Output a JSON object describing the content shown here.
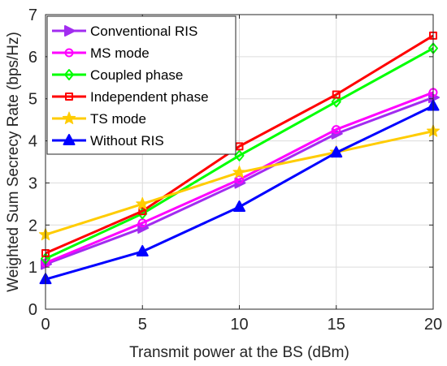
{
  "chart_data": {
    "type": "line",
    "xlabel": "Transmit power at the BS (dBm)",
    "ylabel": "Weighted Sum Secrecy Rate (bps/Hz)",
    "xlim": [
      0,
      20
    ],
    "ylim": [
      0,
      7
    ],
    "x": [
      0,
      5,
      10,
      15,
      20
    ],
    "xticks": [
      "0",
      "5",
      "10",
      "15",
      "20"
    ],
    "yticks": [
      "0",
      "1",
      "2",
      "3",
      "4",
      "5",
      "6",
      "7"
    ],
    "grid": true,
    "legend_position": "top-left",
    "series": [
      {
        "name": "Conventional RIS",
        "color": "#a22cf0",
        "marker": "triangle-right",
        "values": [
          1.07,
          1.93,
          3.0,
          4.17,
          5.03
        ]
      },
      {
        "name": "MS mode",
        "color": "#ff00ff",
        "marker": "circle",
        "values": [
          1.1,
          2.05,
          3.08,
          4.27,
          5.15
        ]
      },
      {
        "name": "Coupled phase",
        "color": "#00ff00",
        "marker": "diamond",
        "values": [
          1.2,
          2.27,
          3.65,
          4.93,
          6.2
        ]
      },
      {
        "name": "Independent phase",
        "color": "#ff0000",
        "marker": "square",
        "values": [
          1.33,
          2.33,
          3.87,
          5.1,
          6.5
        ]
      },
      {
        "name": "TS mode",
        "color": "#ffcc00",
        "marker": "star",
        "values": [
          1.77,
          2.5,
          3.25,
          3.73,
          4.23
        ]
      },
      {
        "name": "Without RIS",
        "color": "#0000ff",
        "marker": "triangle-up",
        "values": [
          0.71,
          1.37,
          2.43,
          3.72,
          4.83
        ]
      }
    ]
  }
}
